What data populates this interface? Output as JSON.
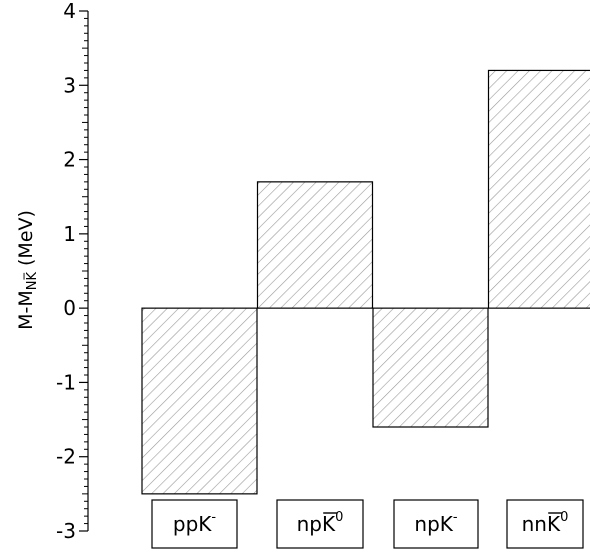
{
  "chart_data": {
    "type": "bar",
    "ylabel": "M-M_{N̅K̅} (MeV)",
    "ylabel_parts": {
      "main": "M-M",
      "sub": "NK̅",
      "unit": " (MeV)"
    },
    "ylim": [
      -3,
      4
    ],
    "yticks": [
      "-3",
      "-2",
      "-1",
      "0",
      "1",
      "2",
      "3",
      "4"
    ],
    "grid": false,
    "legend": "none",
    "fill": "diagonal-hatch",
    "bar_color": "#cfcfcf",
    "categories": [
      {
        "base": "ppK",
        "sup": "-",
        "overbar": false
      },
      {
        "base": "npK",
        "sup": "0",
        "overbar": true
      },
      {
        "base": "npK",
        "sup": "-",
        "overbar": false
      },
      {
        "base": "nnK",
        "sup": "0",
        "overbar": true
      }
    ],
    "values": [
      -2.5,
      1.7,
      -1.6,
      3.2
    ]
  }
}
